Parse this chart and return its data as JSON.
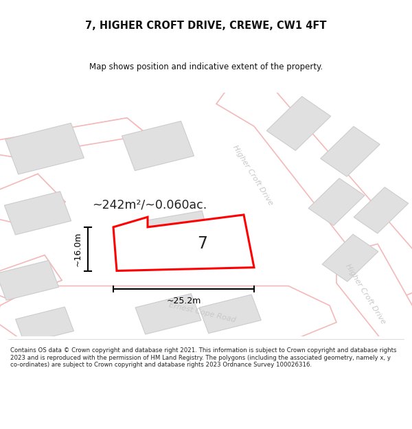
{
  "title": "7, HIGHER CROFT DRIVE, CREWE, CW1 4FT",
  "subtitle": "Map shows position and indicative extent of the property.",
  "area_label": "~242m²/~0.060ac.",
  "number_label": "7",
  "dim_width": "~25.2m",
  "dim_height": "~16.0m",
  "road_label_top": "Higher Croft Drive",
  "road_label_bottom": "Higher Croft Drive",
  "road_label_ernest": "Ernest Cope Road",
  "footer_text": "Contains OS data © Crown copyright and database right 2021. This information is subject to Crown copyright and database rights 2023 and is reproduced with the permission of HM Land Registry. The polygons (including the associated geometry, namely x, y co-ordinates) are subject to Crown copyright and database rights 2023 Ordnance Survey 100026316.",
  "bg_color": "#ffffff",
  "map_bg": "#efefef",
  "road_fill": "#ffffff",
  "road_edge": "#f5b8b8",
  "building_fill": "#e0e0e0",
  "building_edge": "#cccccc",
  "plot_fill": "#ffffff",
  "plot_edge": "#ff0000",
  "road_text": "#c8c8c8",
  "dim_color": "#000000"
}
